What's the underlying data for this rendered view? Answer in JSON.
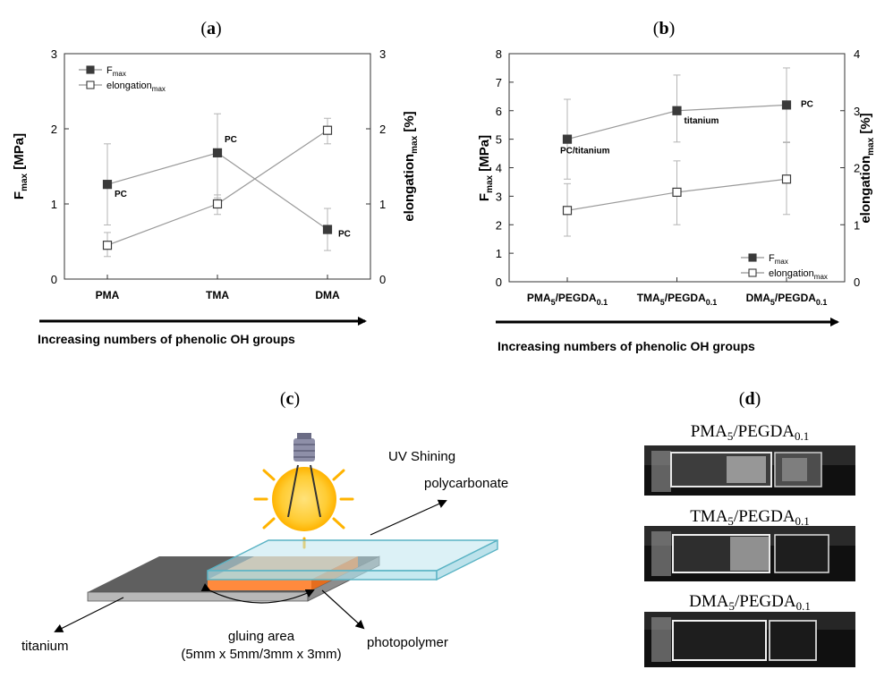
{
  "panels": {
    "a": "a",
    "b": "b",
    "c": "c",
    "d": "d"
  },
  "chart_data": [
    {
      "type": "line",
      "panel": "a",
      "categories": [
        "PMA",
        "TMA",
        "DMA"
      ],
      "xlabel": "Increasing numbers of phenolic OH groups",
      "ylabel_left": "F",
      "ylabel_left_sub": "max",
      "ylabel_left_unit": " [MPa]",
      "ylabel_right": "elongation",
      "ylabel_right_sub": "max",
      "ylabel_right_unit": " [%]",
      "ylim_left": [
        0,
        3
      ],
      "ylim_right": [
        0,
        3
      ],
      "yticks_left": [
        "0",
        "1",
        "2",
        "3"
      ],
      "yticks_right": [
        "0",
        "1",
        "2",
        "3"
      ],
      "legend_position": "top-left",
      "series": [
        {
          "name": "F",
          "name_sub": "max",
          "marker": "filled-square",
          "axis": "left",
          "values": [
            1.26,
            1.68,
            0.66
          ],
          "err_low": [
            0.72,
            1.08,
            0.38
          ],
          "err_high": [
            1.8,
            2.2,
            0.94
          ]
        },
        {
          "name": "elongation",
          "name_sub": "max",
          "marker": "open-square",
          "axis": "right",
          "values": [
            0.45,
            1.0,
            1.98
          ],
          "err_low": [
            0.3,
            0.86,
            1.8
          ],
          "err_high": [
            0.62,
            1.12,
            2.14
          ]
        }
      ],
      "annotations": [
        "PC",
        "PC",
        "PC"
      ]
    },
    {
      "type": "line",
      "panel": "b",
      "categories": [
        "PMA",
        "TMA",
        "DMA"
      ],
      "category_suffix": "/PEGDA",
      "category_sub1": "5",
      "category_sub2": "0.1",
      "xlabel": "Increasing numbers of phenolic OH groups",
      "ylabel_left": "F",
      "ylabel_left_sub": "max",
      "ylabel_left_unit": " [MPa]",
      "ylabel_right": "elongation",
      "ylabel_right_sub": "max",
      "ylabel_right_unit": " [%]",
      "ylim_left": [
        0,
        8
      ],
      "ylim_right": [
        0,
        4
      ],
      "yticks_left": [
        "0",
        "1",
        "2",
        "3",
        "4",
        "5",
        "6",
        "7",
        "8"
      ],
      "yticks_right": [
        "0",
        "1",
        "2",
        "3",
        "4"
      ],
      "legend_position": "bottom-right",
      "series": [
        {
          "name": "F",
          "name_sub": "max",
          "marker": "filled-square",
          "axis": "left",
          "values": [
            5.0,
            6.0,
            6.2
          ],
          "err_low": [
            3.6,
            4.9,
            4.9
          ],
          "err_high": [
            6.4,
            7.25,
            7.5
          ]
        },
        {
          "name": "elongation",
          "name_sub": "max",
          "marker": "open-square",
          "axis": "right",
          "values": [
            1.25,
            1.57,
            1.8
          ],
          "err_low": [
            0.8,
            1.0,
            1.18
          ],
          "err_high": [
            1.72,
            2.12,
            2.44
          ]
        }
      ],
      "annotations": [
        "PC/titanium",
        "titanium",
        "PC"
      ]
    }
  ],
  "diagram": {
    "uv_label": "UV Shining",
    "polycarbonate": "polycarbonate",
    "titanium": "titanium",
    "photopolymer": "photopolymer",
    "gluing_area": "gluing area",
    "gluing_dims": "(5mm x 5mm/3mm x 3mm)"
  },
  "photos": {
    "labels": [
      {
        "base": "PMA",
        "sub1": "5",
        "mid": "/PEGDA",
        "sub2": "0.1"
      },
      {
        "base": "TMA",
        "sub1": "5",
        "mid": "/PEGDA",
        "sub2": "0.1"
      },
      {
        "base": "DMA",
        "sub1": "5",
        "mid": "/PEGDA",
        "sub2": "0.1"
      }
    ]
  }
}
